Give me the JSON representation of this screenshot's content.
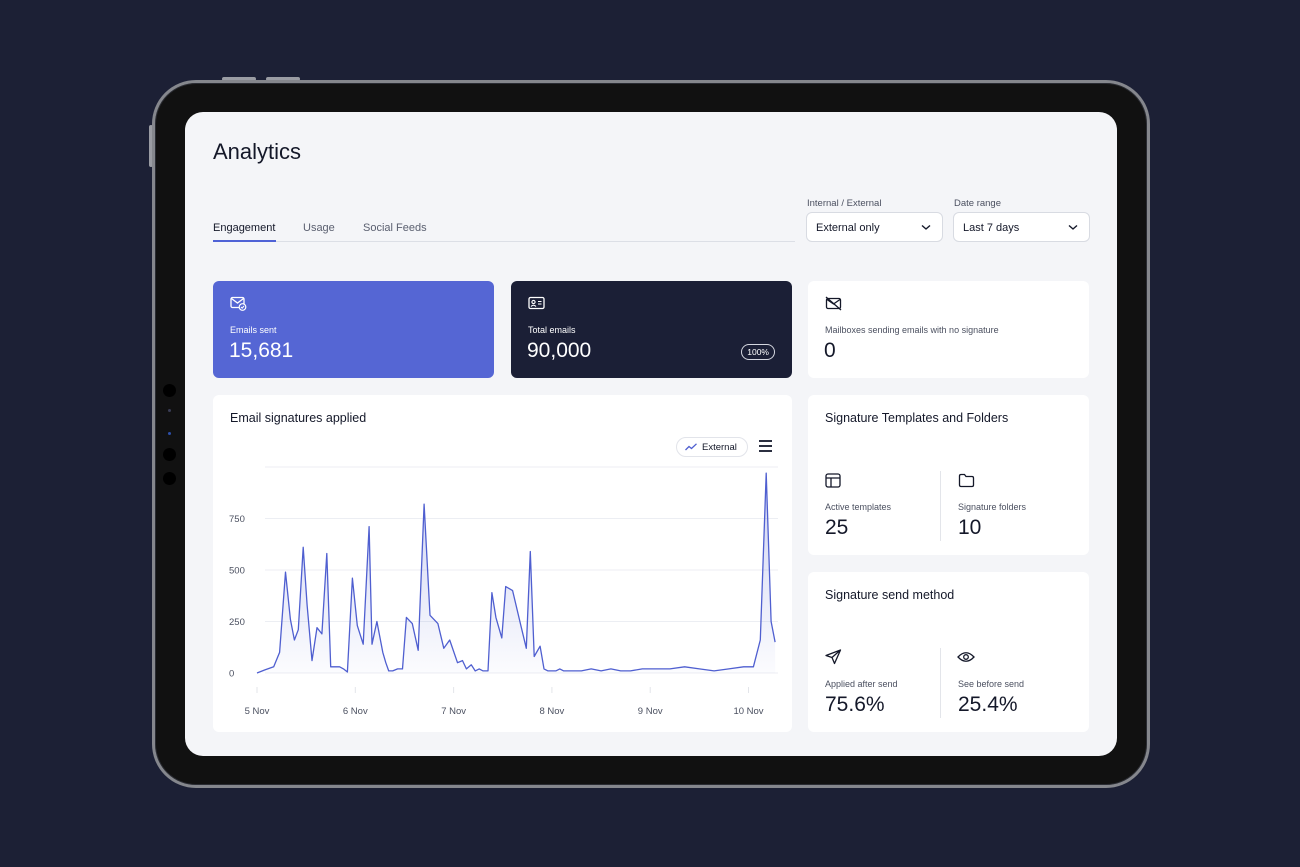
{
  "page": {
    "title": "Analytics"
  },
  "tabs": [
    {
      "label": "Engagement",
      "active": true
    },
    {
      "label": "Usage",
      "active": false
    },
    {
      "label": "Social Feeds",
      "active": false
    }
  ],
  "filters": {
    "scope": {
      "label": "Internal / External",
      "value": "External only"
    },
    "date_range": {
      "label": "Date range",
      "value": "Last 7 days"
    }
  },
  "kpis": {
    "emails_sent": {
      "label": "Emails sent",
      "value": "15,681",
      "icon": "mail-check-icon",
      "color": "#5566d4"
    },
    "total_emails": {
      "label": "Total emails",
      "value": "90,000",
      "badge": "100%",
      "icon": "contact-card-icon",
      "color": "#1b1f36"
    },
    "no_signature": {
      "label": "Mailboxes sending emails with no signature",
      "value": "0",
      "icon": "mail-off-icon"
    }
  },
  "signature_chart": {
    "title": "Email signatures applied",
    "legend_label": "External",
    "series_color": "#4f5fd0"
  },
  "chart_data": {
    "type": "area",
    "title": "Email signatures applied",
    "xlabel": "",
    "ylabel": "",
    "x_ticks": [
      "5 Nov",
      "6 Nov",
      "7 Nov",
      "8 Nov",
      "9 Nov",
      "10 Nov"
    ],
    "y_ticks": [
      0,
      250,
      500,
      750
    ],
    "ylim": [
      0,
      1000
    ],
    "xlim": [
      0,
      5.3
    ],
    "grid": true,
    "series": [
      {
        "name": "External",
        "x": [
          0.0,
          0.08,
          0.17,
          0.23,
          0.29,
          0.34,
          0.38,
          0.42,
          0.47,
          0.51,
          0.56,
          0.61,
          0.66,
          0.71,
          0.75,
          0.8,
          0.84,
          0.88,
          0.92,
          0.97,
          1.02,
          1.08,
          1.14,
          1.17,
          1.22,
          1.28,
          1.31,
          1.34,
          1.38,
          1.43,
          1.48,
          1.52,
          1.58,
          1.64,
          1.7,
          1.76,
          1.84,
          1.9,
          1.96,
          2.04,
          2.09,
          2.13,
          2.18,
          2.22,
          2.26,
          2.3,
          2.35,
          2.39,
          2.43,
          2.49,
          2.53,
          2.6,
          2.68,
          2.74,
          2.78,
          2.82,
          2.88,
          2.92,
          2.96,
          3.0,
          3.04,
          3.08,
          3.12,
          3.16,
          3.22,
          3.3,
          3.4,
          3.5,
          3.6,
          3.7,
          3.8,
          3.92,
          4.05,
          4.2,
          4.35,
          4.5,
          4.65,
          4.8,
          4.95,
          5.05,
          5.12,
          5.18,
          5.23,
          5.27
        ],
        "values": [
          0,
          15,
          30,
          100,
          490,
          260,
          160,
          210,
          610,
          330,
          60,
          220,
          190,
          580,
          30,
          30,
          30,
          20,
          5,
          460,
          230,
          140,
          710,
          140,
          250,
          100,
          50,
          10,
          10,
          20,
          20,
          270,
          240,
          110,
          820,
          280,
          240,
          120,
          160,
          50,
          60,
          20,
          40,
          10,
          20,
          10,
          10,
          390,
          270,
          170,
          420,
          400,
          240,
          120,
          590,
          80,
          130,
          20,
          10,
          10,
          10,
          20,
          10,
          10,
          10,
          10,
          20,
          10,
          20,
          10,
          10,
          20,
          20,
          20,
          30,
          20,
          10,
          20,
          30,
          30,
          160,
          970,
          250,
          150
        ]
      }
    ]
  },
  "templates_card": {
    "title": "Signature Templates and Folders",
    "active_templates": {
      "label": "Active templates",
      "value": "25",
      "icon": "template-icon"
    },
    "folders": {
      "label": "Signature folders",
      "value": "10",
      "icon": "folder-icon"
    }
  },
  "send_method_card": {
    "title": "Signature send method",
    "after_send": {
      "label": "Applied after send",
      "value": "75.6%",
      "fraction": 0.756,
      "icon": "send-icon"
    },
    "before_send": {
      "label": "See before send",
      "value": "25.4%",
      "fraction": 0.254,
      "icon": "eye-icon"
    }
  }
}
